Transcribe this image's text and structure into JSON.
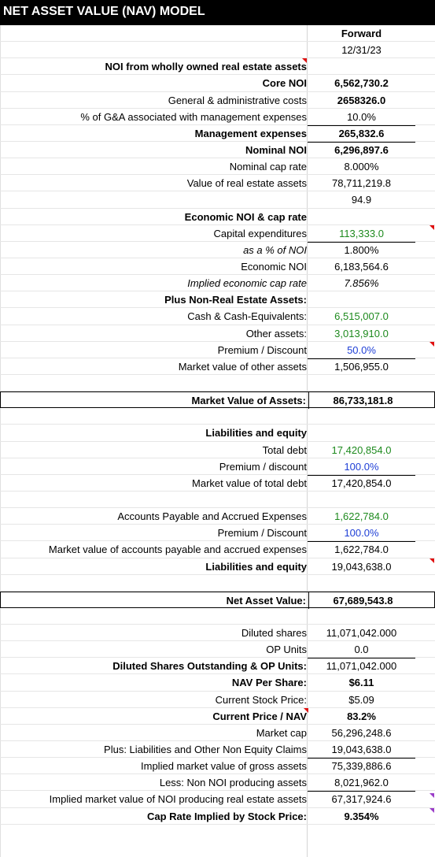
{
  "title": "NET ASSET VALUE (NAV) MODEL",
  "header": {
    "col_label": "Forward",
    "date": "12/31/23"
  },
  "rows": [
    {
      "label": "",
      "value": ""
    },
    {
      "label": "NOI from wholly owned real estate assets",
      "value": ""
    },
    {
      "label": "Core NOI",
      "value": "6,562,730.2"
    },
    {
      "label": "General & administrative costs",
      "value": "2658326.0"
    },
    {
      "label": "% of G&A associated with management expenses",
      "value": "10.0%"
    },
    {
      "label": "Management expenses",
      "value": "265,832.6"
    },
    {
      "label": "Nominal NOI",
      "value": "6,296,897.6"
    },
    {
      "label": "Nominal cap rate",
      "value": "8.000%"
    },
    {
      "label": "Value of real estate assets",
      "value": "78,711,219.8"
    },
    {
      "label": "",
      "value": "94.9"
    },
    {
      "label": "Economic NOI & cap rate",
      "value": ""
    },
    {
      "label": "Capital expenditures",
      "value": "113,333.0"
    },
    {
      "label": "as a % of NOI",
      "value": "1.800%"
    },
    {
      "label": "Economic NOI",
      "value": "6,183,564.6"
    },
    {
      "label": "Implied economic cap rate",
      "value": "7.856%"
    },
    {
      "label": "Plus Non-Real Estate Assets:",
      "value": ""
    },
    {
      "label": "Cash & Cash-Equivalents:",
      "value": "6,515,007.0"
    },
    {
      "label": "Other assets:",
      "value": "3,013,910.0"
    },
    {
      "label": "Premium / Discount",
      "value": "50.0%"
    },
    {
      "label": "Market value of other assets",
      "value": "1,506,955.0"
    },
    {
      "label": "",
      "value": ""
    },
    {
      "label": "Market Value of Assets:",
      "value": "86,733,181.8"
    },
    {
      "label": "",
      "value": ""
    },
    {
      "label": "Liabilities and equity",
      "value": ""
    },
    {
      "label": "Total debt",
      "value": "17,420,854.0"
    },
    {
      "label": "Premium / discount",
      "value": "100.0%"
    },
    {
      "label": "Market value of total debt",
      "value": "17,420,854.0"
    },
    {
      "label": "",
      "value": ""
    },
    {
      "label": "Accounts Payable and Accrued Expenses",
      "value": "1,622,784.0"
    },
    {
      "label": "Premium / Discount",
      "value": "100.0%"
    },
    {
      "label": "Market value of accounts payable and accrued expenses",
      "value": "1,622,784.0"
    },
    {
      "label": "Liabilities and equity",
      "value": "19,043,638.0"
    },
    {
      "label": "",
      "value": ""
    },
    {
      "label": "Net Asset Value:",
      "value": "67,689,543.8"
    },
    {
      "label": "",
      "value": ""
    },
    {
      "label": "Diluted shares",
      "value": "11,071,042.000"
    },
    {
      "label": "OP Units",
      "value": "0.0"
    },
    {
      "label": "Diluted Shares Outstanding & OP Units:",
      "value": "11,071,042.000"
    },
    {
      "label": "NAV Per Share:",
      "value": "$6.11"
    },
    {
      "label": "Current Stock Price:",
      "value": "$5.09"
    },
    {
      "label": "Current Price / NAV",
      "value": "83.2%"
    },
    {
      "label": "Market cap",
      "value": "56,296,248.6"
    },
    {
      "label": "Plus: Liabilities and Other Non Equity Claims",
      "value": "19,043,638.0"
    },
    {
      "label": "Implied market value of gross assets",
      "value": "75,339,886.6"
    },
    {
      "label": "Less: Non NOI producing assets",
      "value": "8,021,962.0"
    },
    {
      "label": "Implied market value of NOI producing real estate assets",
      "value": "67,317,924.6"
    },
    {
      "label": "Cap Rate Implied by Stock Price:",
      "value": "9.354%"
    }
  ],
  "colors": {
    "input_green": "#1e8a1e",
    "input_blue": "#1f3fd6",
    "comment_red": "#e01010",
    "comment_purple": "#9a3cc8"
  }
}
